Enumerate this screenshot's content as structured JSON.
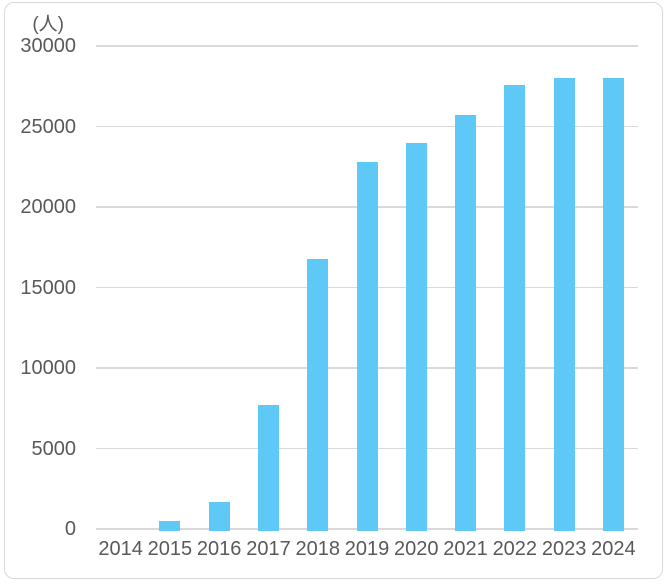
{
  "chart_data": {
    "type": "bar",
    "title": "",
    "unit_label": "(人)",
    "xlabel": "",
    "ylabel": "(人)",
    "categories": [
      "2014",
      "2015",
      "2016",
      "2017",
      "2018",
      "2019",
      "2020",
      "2021",
      "2022",
      "2023",
      "2024"
    ],
    "values": [
      0,
      500,
      1700,
      7700,
      16800,
      22800,
      24000,
      25700,
      27600,
      28000,
      28000
    ],
    "ylim": [
      0,
      30000
    ],
    "ytick_interval": 5000,
    "yticks": [
      0,
      5000,
      10000,
      15000,
      20000,
      25000,
      30000
    ],
    "grid": true,
    "legend": false,
    "colors": {
      "bar": "#5EC9F6",
      "gridline": "#D9D9D9",
      "axis": "#D9D9D9",
      "text": "#595959",
      "frame_border": "#D9D9D9",
      "background": "#FFFFFF"
    }
  }
}
